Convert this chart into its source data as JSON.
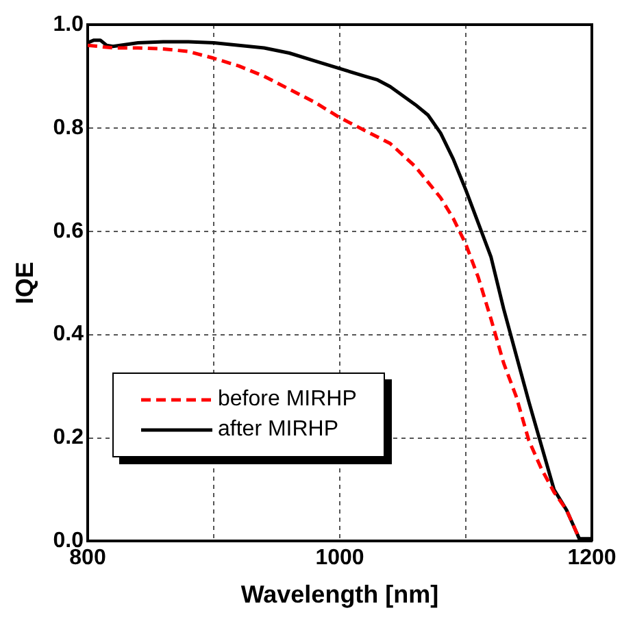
{
  "chart_data": {
    "type": "line",
    "xlabel": "Wavelength [nm]",
    "ylabel": "IQE",
    "xlim": [
      800,
      1200
    ],
    "xticks": [
      800,
      {
        "value": 900,
        "label": null
      },
      1000,
      {
        "value": 1100,
        "label": null
      },
      1200
    ],
    "ylim": [
      0,
      1
    ],
    "yticks": [
      {
        "value": 0,
        "label": "0.0"
      },
      0.2,
      0.4,
      0.6,
      0.8,
      {
        "value": 1,
        "label": "1.0"
      }
    ],
    "grid": true,
    "legend": "bottom left",
    "marker": "none",
    "series": [
      {
        "name": "before MIRHP",
        "color": "#ff0000",
        "line_style": "dashed",
        "x": [
          800,
          820,
          840,
          860,
          880,
          900,
          920,
          940,
          960,
          980,
          1000,
          1020,
          1040,
          1060,
          1080,
          1090,
          1100,
          1110,
          1120,
          1130,
          1140,
          1150,
          1160,
          1170,
          1180,
          1190
        ],
        "values": [
          0.96,
          0.955,
          0.955,
          0.953,
          0.948,
          0.935,
          0.92,
          0.9,
          0.875,
          0.85,
          0.82,
          0.795,
          0.77,
          0.725,
          0.665,
          0.625,
          0.575,
          0.51,
          0.43,
          0.345,
          0.28,
          0.195,
          0.14,
          0.095,
          0.06,
          0.005
        ]
      },
      {
        "name": "after MIRHP",
        "color": "#000000",
        "line_style": "solid",
        "x": [
          800,
          805,
          810,
          815,
          820,
          840,
          860,
          880,
          900,
          920,
          940,
          960,
          980,
          1000,
          1020,
          1030,
          1040,
          1060,
          1070,
          1080,
          1090,
          1100,
          1110,
          1120,
          1130,
          1140,
          1150,
          1160,
          1170,
          1180,
          1190,
          1200
        ],
        "values": [
          0.965,
          0.97,
          0.97,
          0.96,
          0.958,
          0.965,
          0.967,
          0.967,
          0.965,
          0.96,
          0.955,
          0.945,
          0.93,
          0.915,
          0.9,
          0.893,
          0.88,
          0.845,
          0.825,
          0.79,
          0.74,
          0.68,
          0.615,
          0.55,
          0.45,
          0.36,
          0.27,
          0.185,
          0.1,
          0.06,
          0.005,
          0.005
        ]
      }
    ]
  }
}
